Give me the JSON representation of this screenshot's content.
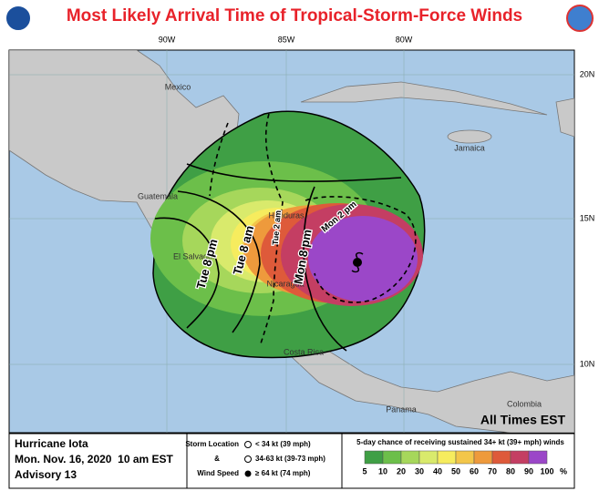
{
  "header": {
    "title": "Most Likely Arrival Time of Tropical-Storm-Force Winds"
  },
  "map": {
    "longitude_labels": [
      "90W",
      "85W",
      "80W"
    ],
    "latitude_labels": [
      "20N",
      "15N",
      "10N"
    ],
    "places": [
      "Mexico",
      "Jamaica",
      "Guatemala",
      "Honduras",
      "El Salvador",
      "Nicaragua",
      "Costa Rica",
      "Panama",
      "Colombia"
    ],
    "arrival_labels": [
      "Tue 8 pm",
      "Tue 8 am",
      "Tue 2 am",
      "Mon 8 pm",
      "Mon 2 pm"
    ],
    "note": "All Times EST"
  },
  "footer": {
    "storm": "Hurricane Iota",
    "date": "Mon. Nov. 16, 2020  10 am EST",
    "advisory": "Advisory 13",
    "legend_titles": [
      "Storm Location",
      "&",
      "Wind Speed"
    ],
    "legend_items": [
      "< 34 kt (39 mph)",
      "34-63 kt (39-73 mph)",
      "≥ 64 kt (74 mph)"
    ],
    "scale_title": "5-day chance of receiving sustained 34+ kt (39+ mph) winds",
    "scale_labels": [
      5,
      10,
      20,
      30,
      40,
      50,
      60,
      70,
      80,
      90,
      100
    ],
    "scale_unit": "%",
    "scale_colors": [
      "#3f9f45",
      "#6cbf4a",
      "#a6d75b",
      "#d9ea6c",
      "#f6ec5e",
      "#f3c64a",
      "#ee9a3c",
      "#de5a3a",
      "#c43e63",
      "#9b47c8"
    ]
  }
}
